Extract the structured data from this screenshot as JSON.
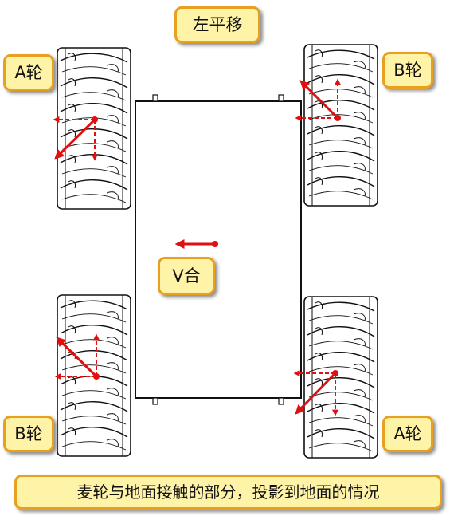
{
  "title": "左平移",
  "wheels": {
    "top_left": "A轮",
    "top_right": "B轮",
    "bottom_left": "B轮",
    "bottom_right": "A轮"
  },
  "velocity_label": "V合",
  "caption": "麦轮与地面接触的部分，投影到地面的情况",
  "colors": {
    "label_fill": "#fff3a8",
    "label_border": "#e8a020",
    "arrow": "#e01010",
    "outline": "#111111"
  }
}
